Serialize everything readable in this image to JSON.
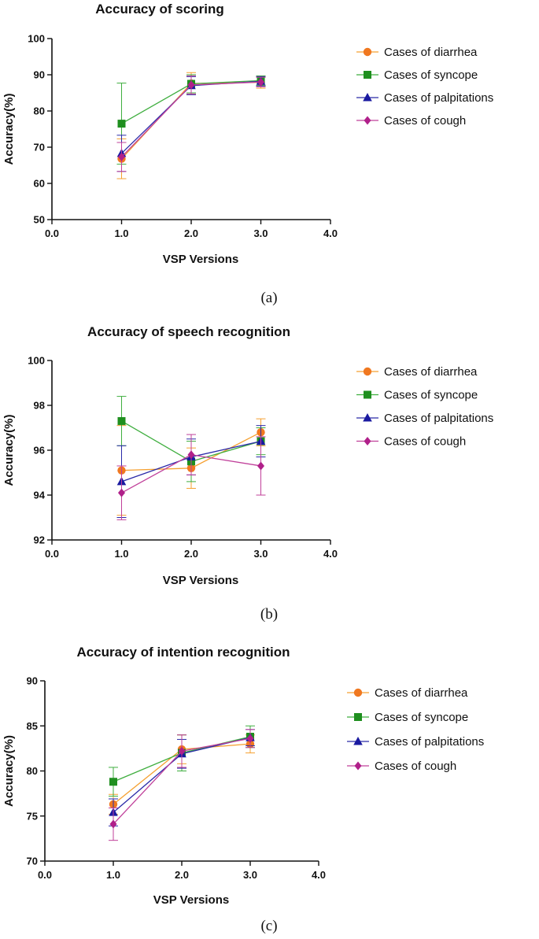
{
  "series_styles": [
    {
      "name": "Cases of diarrhea",
      "color": "#f5a030",
      "marker_color": "#f07820",
      "marker": "circle"
    },
    {
      "name": "Cases of syncope",
      "color": "#3fae3f",
      "marker_color": "#1f8f1f",
      "marker": "square"
    },
    {
      "name": "Cases of palpitations",
      "color": "#2a2aa8",
      "marker_color": "#1a1aa0",
      "marker": "triangle"
    },
    {
      "name": "Cases of cough",
      "color": "#c0409a",
      "marker_color": "#b0208a",
      "marker": "diamond"
    }
  ],
  "chart_data": [
    {
      "type": "line",
      "title": "Accuracy of scoring",
      "xlabel": "VSP Versions",
      "ylabel": "Accuracy(%)",
      "caption": "(a)",
      "xlim": [
        0,
        4
      ],
      "ylim": [
        50,
        100
      ],
      "x_ticks": [
        "0.0",
        "1.0",
        "2.0",
        "3.0",
        "4.0"
      ],
      "y_ticks": [
        "50",
        "60",
        "70",
        "80",
        "90",
        "100"
      ],
      "x": [
        1,
        2,
        3
      ],
      "series": [
        {
          "name": "Cases of diarrhea",
          "values": [
            66.8,
            87.6,
            87.9
          ],
          "err": [
            5.5,
            3.0,
            1.6
          ]
        },
        {
          "name": "Cases of syncope",
          "values": [
            76.5,
            87.5,
            88.4
          ],
          "err": [
            11.2,
            2.5,
            1.3
          ]
        },
        {
          "name": "Cases of palpitations",
          "values": [
            68.3,
            87.0,
            88.2
          ],
          "err": [
            5.0,
            2.5,
            1.3
          ]
        },
        {
          "name": "Cases of cough",
          "values": [
            67.3,
            87.2,
            88.0
          ],
          "err": [
            4.0,
            2.5,
            1.3
          ]
        }
      ]
    },
    {
      "type": "line",
      "title": "Accuracy of speech recognition",
      "xlabel": "VSP Versions",
      "ylabel": "Accuracy(%)",
      "caption": "(b)",
      "xlim": [
        0,
        4
      ],
      "ylim": [
        92,
        100
      ],
      "x_ticks": [
        "0.0",
        "1.0",
        "2.0",
        "3.0",
        "4.0"
      ],
      "y_ticks": [
        "92",
        "94",
        "96",
        "98",
        "100"
      ],
      "x": [
        1,
        2,
        3
      ],
      "series": [
        {
          "name": "Cases of diarrhea",
          "values": [
            95.1,
            95.2,
            96.8
          ],
          "err": [
            2.0,
            0.9,
            0.6
          ]
        },
        {
          "name": "Cases of syncope",
          "values": [
            97.3,
            95.5,
            96.4
          ],
          "err": [
            1.1,
            0.9,
            0.6
          ]
        },
        {
          "name": "Cases of palpitations",
          "values": [
            94.6,
            95.7,
            96.4
          ],
          "err": [
            1.6,
            0.8,
            0.7
          ]
        },
        {
          "name": "Cases of cough",
          "values": [
            94.1,
            95.8,
            95.3
          ],
          "err": [
            1.2,
            0.9,
            1.3
          ]
        }
      ]
    },
    {
      "type": "line",
      "title": "Accuracy of intention recognition",
      "xlabel": "VSP Versions",
      "ylabel": "Accuracy(%)",
      "caption": "(c)",
      "xlim": [
        0,
        4
      ],
      "ylim": [
        70,
        90
      ],
      "x_ticks": [
        "0.0",
        "1.0",
        "2.0",
        "3.0",
        "4.0"
      ],
      "y_ticks": [
        "70",
        "75",
        "80",
        "85",
        "90"
      ],
      "x": [
        1,
        2,
        3
      ],
      "series": [
        {
          "name": "Cases of diarrhea",
          "values": [
            76.3,
            82.4,
            83.0
          ],
          "err": [
            1.1,
            1.6,
            1.0
          ]
        },
        {
          "name": "Cases of syncope",
          "values": [
            78.8,
            82.0,
            83.8
          ],
          "err": [
            1.6,
            2.0,
            1.2
          ]
        },
        {
          "name": "Cases of palpitations",
          "values": [
            75.4,
            81.9,
            83.7
          ],
          "err": [
            1.5,
            1.6,
            0.9
          ]
        },
        {
          "name": "Cases of cough",
          "values": [
            74.1,
            82.2,
            83.6
          ],
          "err": [
            1.8,
            1.8,
            1.0
          ]
        }
      ]
    }
  ]
}
